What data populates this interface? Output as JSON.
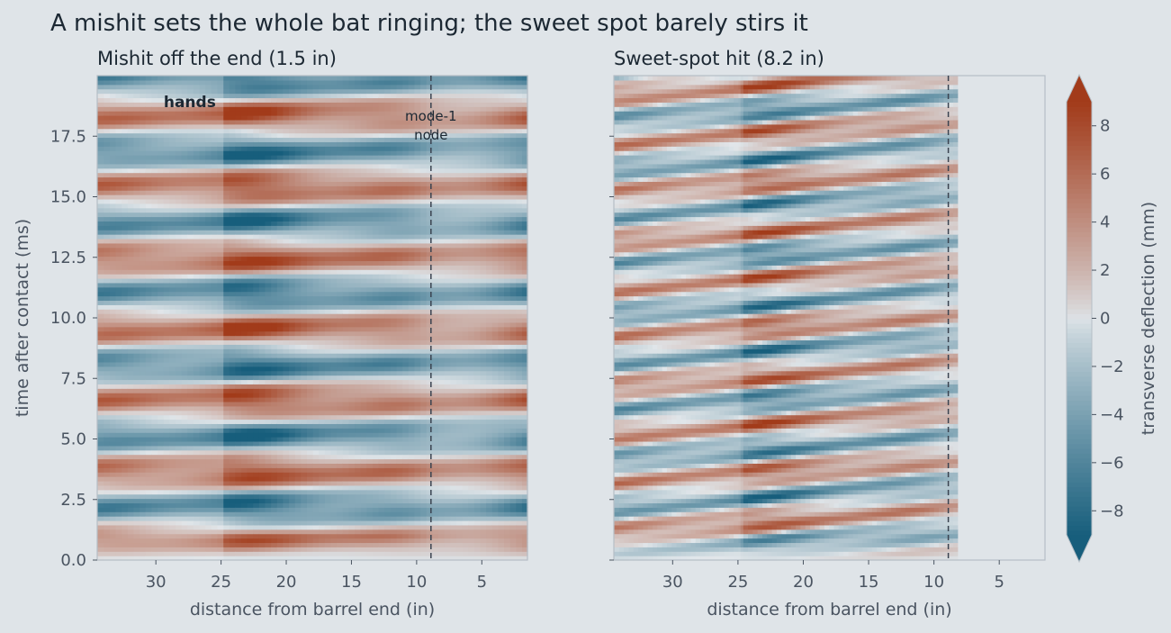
{
  "title": "A mishit sets the whole bat ringing; the sweet spot barely stirs it",
  "colors": {
    "background": "#dfe4e8",
    "text": "#1c2833",
    "axis_text": "#4a5461",
    "negative_max": "#175e7c",
    "neutral": "#dde3e7",
    "positive_max": "#a23b1a",
    "node_line": "#3a4350"
  },
  "chart_data": [
    {
      "type": "heatmap",
      "subtitle": "Mishit off the end (1.5 in)",
      "impact_distance_in": 1.5,
      "xlabel": "distance from barrel end (in)",
      "ylabel": "time after contact (ms)",
      "x_reversed": true,
      "xlim": [
        34.5,
        1.5
      ],
      "ylim": [
        0,
        20
      ],
      "x_ticks": [
        30,
        25,
        20,
        15,
        10,
        5
      ],
      "y_ticks": [
        0.0,
        2.5,
        5.0,
        7.5,
        10.0,
        12.5,
        15.0,
        17.5
      ],
      "y_tick_labels_shown": true,
      "data_x_extent": [
        1.5,
        34.5
      ],
      "mode1_node_in": 8.9,
      "node_label": [
        "mode-1",
        "node"
      ],
      "handle_zone_label": "hands",
      "handle_zone": [
        24.8,
        34.5
      ],
      "amplitude_mm": 7.6,
      "main_frequency_per_ms": 0.34,
      "second_mode_fraction": 0.3,
      "distortion_per_in": 0.0,
      "decay_per_ms": 0.0,
      "grid": false
    },
    {
      "type": "heatmap",
      "subtitle": "Sweet-spot hit (8.2 in)",
      "impact_distance_in": 8.2,
      "xlabel": "distance from barrel end (in)",
      "ylabel": "",
      "x_reversed": true,
      "xlim": [
        34.5,
        1.5
      ],
      "ylim": [
        0,
        20
      ],
      "x_ticks": [
        30,
        25,
        20,
        15,
        10,
        5
      ],
      "y_ticks": [
        0.0,
        2.5,
        5.0,
        7.5,
        10.0,
        12.5,
        15.0,
        17.5
      ],
      "y_tick_labels_shown": false,
      "data_x_extent": [
        8.2,
        34.5
      ],
      "mode1_node_in": 8.9,
      "handle_zone": [
        24.8,
        34.5
      ],
      "amplitude_mm": 5.8,
      "main_frequency_per_ms": 0.5,
      "second_mode_fraction": 0.5,
      "distortion_per_in": 0.12,
      "decay_per_ms": 0.0,
      "grid": false
    }
  ],
  "colorbar": {
    "label": "transverse deflection (mm)",
    "ticks": [
      -8,
      -6,
      -4,
      -2,
      0,
      2,
      4,
      6,
      8
    ],
    "range": [
      -9,
      9
    ],
    "extend": "both"
  }
}
